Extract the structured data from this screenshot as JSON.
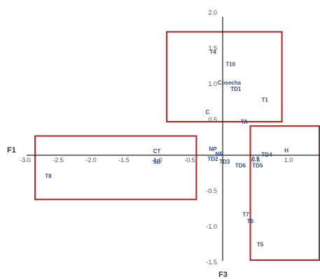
{
  "colors": {
    "axis": "#222222",
    "tick_text": "#555555",
    "point_label": "#2f4f8f",
    "highlight_box": "#b22222"
  },
  "chart_data": {
    "type": "scatter",
    "title": "",
    "xlabel": "F1",
    "ylabel": "F3",
    "xlim": [
      -3.0,
      1.5
    ],
    "ylim": [
      -1.5,
      2.0
    ],
    "grid": false,
    "legend": "none",
    "x_ticks": [
      "-3.0",
      "-2.5",
      "-2.0",
      "-1.5",
      "-1.0",
      "-0.5",
      "0.5",
      "1.0",
      "1"
    ],
    "y_ticks": [
      "2.0",
      "1.5",
      "1.0",
      "0.5",
      "-0.5",
      "-1.0",
      "-1.5"
    ],
    "points": [
      {
        "label": "T4",
        "x": -0.15,
        "y": 1.42
      },
      {
        "label": "T10",
        "x": 0.12,
        "y": 1.25
      },
      {
        "label": "Cosecha",
        "x": 0.1,
        "y": 0.99
      },
      {
        "label": "TD1",
        "x": 0.2,
        "y": 0.9
      },
      {
        "label": "T1",
        "x": 0.64,
        "y": 0.75
      },
      {
        "label": "C",
        "x": -0.23,
        "y": 0.58
      },
      {
        "label": "TA",
        "x": 0.33,
        "y": 0.44
      },
      {
        "label": "CT",
        "x": -1.0,
        "y": 0.03
      },
      {
        "label": "SB",
        "x": -1.0,
        "y": -0.12
      },
      {
        "label": "T8",
        "x": -2.65,
        "y": -0.32
      },
      {
        "label": "NP",
        "x": -0.15,
        "y": 0.06
      },
      {
        "label": "NR",
        "x": -0.05,
        "y": -0.01
      },
      {
        "label": "TD2",
        "x": -0.15,
        "y": -0.08
      },
      {
        "label": "TD3",
        "x": 0.03,
        "y": -0.12
      },
      {
        "label": "TD6",
        "x": 0.27,
        "y": -0.17
      },
      {
        "label": "0.5",
        "x": 0.5,
        "y": -0.08
      },
      {
        "label": "TD5",
        "x": 0.53,
        "y": -0.17
      },
      {
        "label": "TD4",
        "x": 0.67,
        "y": -0.02
      },
      {
        "label": "H",
        "x": 0.97,
        "y": 0.04
      },
      {
        "label": "T7",
        "x": 0.35,
        "y": -0.86
      },
      {
        "label": "T6",
        "x": 0.42,
        "y": -0.95
      },
      {
        "label": "T5",
        "x": 0.57,
        "y": -1.28
      }
    ],
    "highlight_boxes": [
      {
        "name": "upper-group",
        "x_range": [
          -0.85,
          0.9
        ],
        "y_range": [
          0.47,
          1.73
        ]
      },
      {
        "name": "left-group",
        "x_range": [
          -2.85,
          -0.4
        ],
        "y_range": [
          -0.62,
          0.27
        ]
      },
      {
        "name": "lower-right-group",
        "x_range": [
          0.42,
          1.55
        ],
        "y_range": [
          -1.47,
          0.41
        ]
      }
    ]
  }
}
